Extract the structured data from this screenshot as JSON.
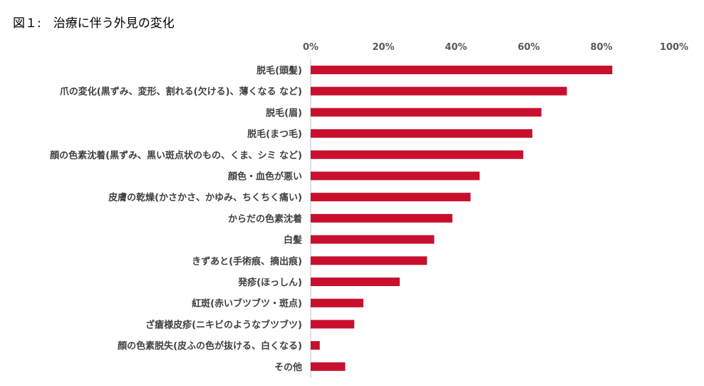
{
  "page": {
    "title": "図１:　治療に伴う外見の変化"
  },
  "chart_data": {
    "type": "bar",
    "orientation": "horizontal",
    "title": "図１:　治療に伴う外見の変化",
    "xlabel": "",
    "ylabel": "",
    "xlim": [
      0,
      100
    ],
    "ticks": [
      "0%",
      "20%",
      "40%",
      "60%",
      "80%",
      "100%"
    ],
    "tick_values": [
      0,
      20,
      40,
      60,
      80,
      100
    ],
    "grid": false,
    "bar_color": "#c8102e",
    "categories": [
      "脱毛(頭髪)",
      "爪の変化(黒ずみ、変形、割れる(欠ける)、薄くなる など)",
      "脱毛(眉)",
      "脱毛(まつ毛)",
      "顔の色素沈着(黒ずみ、黒い斑点状のもの、くま、シミ など)",
      "顔色・血色が悪い",
      "皮膚の乾燥(かさかさ、かゆみ、ちくちく痛い)",
      "からだの色素沈着",
      "白髪",
      "きずあと(手術痕、摘出痕)",
      "発疹(ほっしん)",
      "紅斑(赤いブツブツ・斑点)",
      "ざ瘡様皮疹(ニキビのようなブツブツ)",
      "顔の色素脱失(皮ふの色が抜ける、白くなる)",
      "その他"
    ],
    "values": [
      83,
      70.5,
      63.5,
      61,
      58.5,
      46.5,
      44,
      39,
      34,
      32,
      24.5,
      14.5,
      12,
      2.5,
      9.5
    ]
  }
}
